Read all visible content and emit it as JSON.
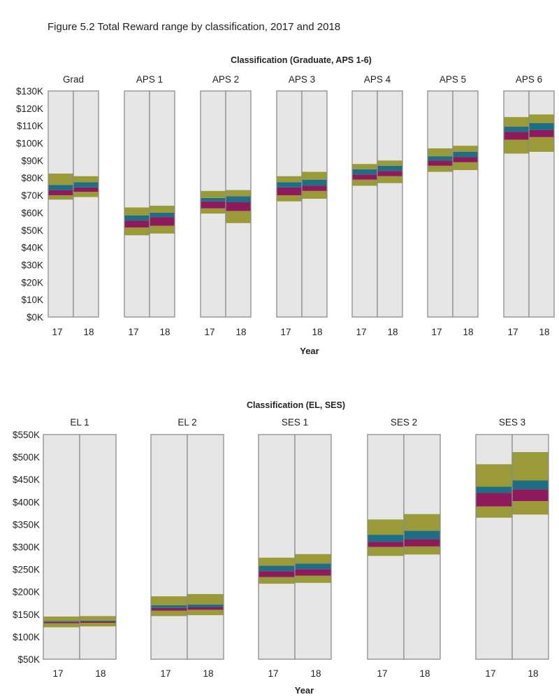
{
  "figure_title": "Figure 5.2 Total Reward range by classification, 2017 and 2018",
  "colors": {
    "column_bg": "#e6e6e6",
    "column_border": "#8c8c8c",
    "outer_band": "#9a9a38",
    "lower_mid_band": "#8e1a5c",
    "upper_mid_band": "#1e6f86"
  },
  "chart_data": [
    {
      "type": "bar",
      "subtype": "range-bands",
      "title": "Classification (Graduate, APS 1-6)",
      "xlabel": "Year",
      "ylabel": "",
      "ylim": [
        0,
        130000
      ],
      "ytick_values": [
        0,
        10000,
        20000,
        30000,
        40000,
        50000,
        60000,
        70000,
        80000,
        90000,
        100000,
        110000,
        120000,
        130000
      ],
      "ytick_labels": [
        "$0K",
        "$10K",
        "$20K",
        "$30K",
        "$40K",
        "$50K",
        "$60K",
        "$70K",
        "$80K",
        "$90K",
        "$100K",
        "$110K",
        "$120K",
        "$130K"
      ],
      "year_labels": [
        "17",
        "18"
      ],
      "band_legend": [
        "min-p25 (olive)",
        "p25-median (purple)",
        "median-p75 (teal)",
        "p75-max (olive)"
      ],
      "categories": [
        {
          "name": "Grad",
          "years": [
            {
              "year": "17",
              "min": 67500,
              "p25": 70000,
              "median": 73000,
              "p75": 76000,
              "max": 82500
            },
            {
              "year": "18",
              "min": 69000,
              "p25": 72000,
              "median": 74500,
              "p75": 77500,
              "max": 81000
            }
          ]
        },
        {
          "name": "APS 1",
          "years": [
            {
              "year": "17",
              "min": 47000,
              "p25": 51500,
              "median": 55500,
              "p75": 58500,
              "max": 63000
            },
            {
              "year": "18",
              "min": 48000,
              "p25": 52500,
              "median": 57500,
              "p75": 60000,
              "max": 64000
            }
          ]
        },
        {
          "name": "APS 2",
          "years": [
            {
              "year": "17",
              "min": 59500,
              "p25": 62500,
              "median": 66500,
              "p75": 68500,
              "max": 72500
            },
            {
              "year": "18",
              "min": 54000,
              "p25": 61000,
              "median": 66000,
              "p75": 69500,
              "max": 73000
            }
          ]
        },
        {
          "name": "APS 3",
          "years": [
            {
              "year": "17",
              "min": 66500,
              "p25": 70000,
              "median": 74500,
              "p75": 77500,
              "max": 81000
            },
            {
              "year": "18",
              "min": 68000,
              "p25": 72500,
              "median": 75500,
              "p75": 79000,
              "max": 83500
            }
          ]
        },
        {
          "name": "APS 4",
          "years": [
            {
              "year": "17",
              "min": 75500,
              "p25": 79000,
              "median": 82000,
              "p75": 85000,
              "max": 88000
            },
            {
              "year": "18",
              "min": 77000,
              "p25": 81000,
              "median": 84000,
              "p75": 87000,
              "max": 90000
            }
          ]
        },
        {
          "name": "APS 5",
          "years": [
            {
              "year": "17",
              "min": 83500,
              "p25": 87000,
              "median": 90000,
              "p75": 92500,
              "max": 97000
            },
            {
              "year": "18",
              "min": 84500,
              "p25": 89000,
              "median": 92000,
              "p75": 95000,
              "max": 98500
            }
          ]
        },
        {
          "name": "APS 6",
          "years": [
            {
              "year": "17",
              "min": 94000,
              "p25": 102000,
              "median": 106500,
              "p75": 109500,
              "max": 115000
            },
            {
              "year": "18",
              "min": 95000,
              "p25": 103500,
              "median": 107500,
              "p75": 111500,
              "max": 116500
            }
          ]
        }
      ]
    },
    {
      "type": "bar",
      "subtype": "range-bands",
      "title": "Classification (EL, SES)",
      "xlabel": "Year",
      "ylabel": "",
      "ylim": [
        50000,
        550000
      ],
      "ytick_values": [
        50000,
        100000,
        150000,
        200000,
        250000,
        300000,
        350000,
        400000,
        450000,
        500000,
        550000
      ],
      "ytick_labels": [
        "$50K",
        "$100K",
        "$150K",
        "$200K",
        "$250K",
        "$300K",
        "$350K",
        "$400K",
        "$450K",
        "$500K",
        "$550K"
      ],
      "year_labels": [
        "17",
        "18"
      ],
      "band_legend": [
        "min-p25 (olive)",
        "p25-median (purple)",
        "median-p75 (teal)",
        "p75-max (olive)"
      ],
      "categories": [
        {
          "name": "EL 1",
          "years": [
            {
              "year": "17",
              "min": 121000,
              "p25": 130000,
              "median": 133000,
              "p75": 135000,
              "max": 145000
            },
            {
              "year": "18",
              "min": 123000,
              "p25": 131000,
              "median": 134000,
              "p75": 136000,
              "max": 146000
            }
          ]
        },
        {
          "name": "EL 2",
          "years": [
            {
              "year": "17",
              "min": 146000,
              "p25": 158000,
              "median": 164000,
              "p75": 170000,
              "max": 190000
            },
            {
              "year": "18",
              "min": 148000,
              "p25": 160000,
              "median": 166000,
              "p75": 172000,
              "max": 195000
            }
          ]
        },
        {
          "name": "SES 1",
          "years": [
            {
              "year": "17",
              "min": 218000,
              "p25": 233000,
              "median": 246000,
              "p75": 258000,
              "max": 276000
            },
            {
              "year": "18",
              "min": 220000,
              "p25": 236000,
              "median": 250000,
              "p75": 263000,
              "max": 284000
            }
          ]
        },
        {
          "name": "SES 2",
          "years": [
            {
              "year": "17",
              "min": 280000,
              "p25": 300000,
              "median": 311000,
              "p75": 327000,
              "max": 361000
            },
            {
              "year": "18",
              "min": 283000,
              "p25": 301000,
              "median": 317000,
              "p75": 336000,
              "max": 373000
            }
          ]
        },
        {
          "name": "SES 3",
          "years": [
            {
              "year": "17",
              "min": 365000,
              "p25": 390000,
              "median": 420000,
              "p75": 434000,
              "max": 484000
            },
            {
              "year": "18",
              "min": 372000,
              "p25": 402000,
              "median": 428000,
              "p75": 448000,
              "max": 511000
            }
          ]
        }
      ]
    }
  ]
}
